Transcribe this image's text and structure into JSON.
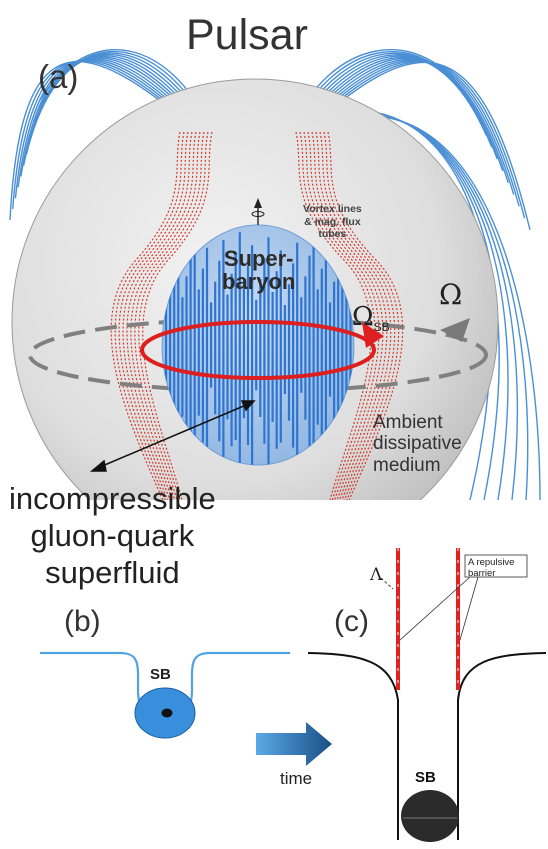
{
  "title": "Pulsar",
  "panels": {
    "a": "(a)",
    "b": "(b)",
    "c": "(c)"
  },
  "labels": {
    "super_baryon_line1": "Super-",
    "super_baryon_line2": "baryon",
    "vortex_line1": "Vortex lines",
    "vortex_line2": "& mag. flux",
    "vortex_line3": "tubes",
    "omega_sb_symbol": "Ω",
    "omega_sb_sub": "SB",
    "omega": "Ω",
    "ambient_line1": "Ambient",
    "ambient_line2": "dissipative",
    "ambient_line3": "medium",
    "superfluid_line1": "incompressible",
    "superfluid_line2": "gluon-quark",
    "superfluid_line3": "superfluid",
    "sb_b": "SB",
    "sb_c": "SB",
    "time": "time",
    "lambda": "Λ",
    "barrier_line1": "A repulsive",
    "barrier_line2": "barrier"
  },
  "colors": {
    "field_lines": "#4a8fd4",
    "vortex_lines": "#d63a2a",
    "sphere": "#dcdcdc",
    "core": "#9fc3e8",
    "core_stripes": "#2f74d0",
    "rotation_ring": "#dd1f1f",
    "ambient_ring": "#808080",
    "potential_b": "#4fa3e0",
    "potential_c": "#111111",
    "barrier": "#e22020"
  }
}
